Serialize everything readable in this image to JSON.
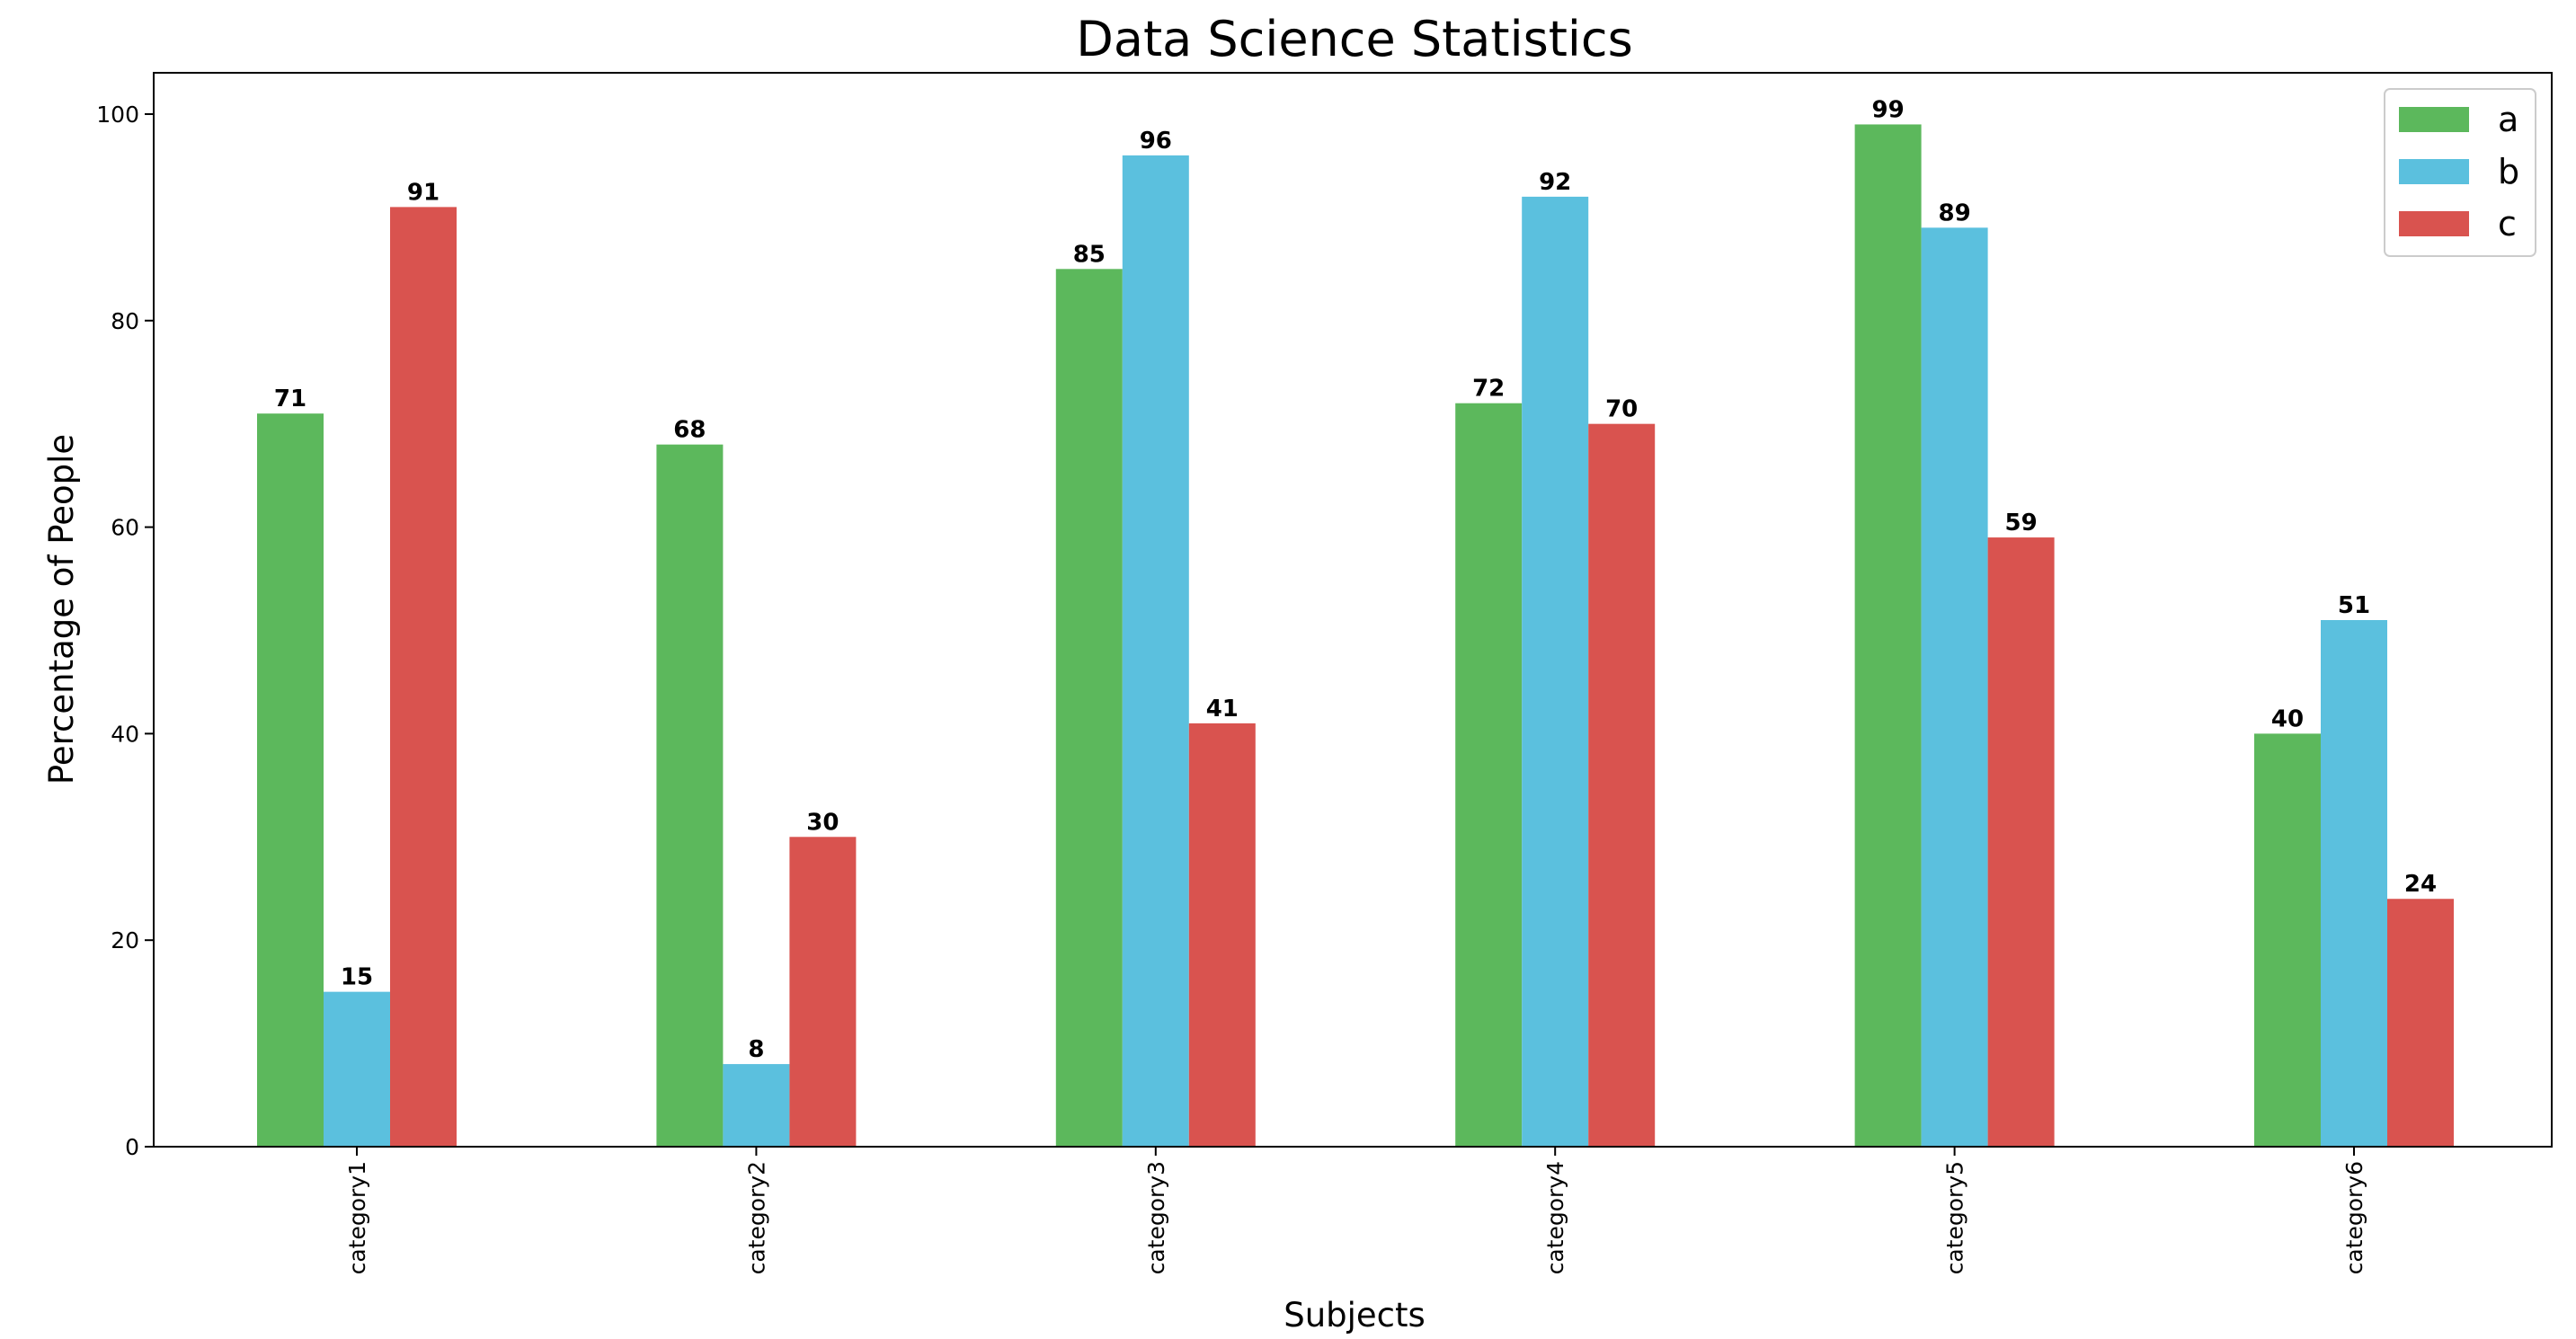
{
  "chart_data": {
    "type": "bar",
    "title": "Data Science Statistics",
    "xlabel": "Subjects",
    "ylabel": "Percentage of People",
    "categories": [
      "category1",
      "category2",
      "category3",
      "category4",
      "category5",
      "category6"
    ],
    "series": [
      {
        "name": "a",
        "color": "#5cb85c",
        "values": [
          71,
          68,
          85,
          72,
          99,
          40
        ]
      },
      {
        "name": "b",
        "color": "#5bc0de",
        "values": [
          15,
          8,
          96,
          92,
          89,
          51
        ]
      },
      {
        "name": "c",
        "color": "#d9534f",
        "values": [
          91,
          30,
          41,
          70,
          59,
          24
        ]
      }
    ],
    "ylim": [
      0,
      104
    ],
    "yticks": [
      0,
      20,
      40,
      60,
      80,
      100
    ],
    "grid": false,
    "legend_position": "top-right",
    "data_labels": true
  }
}
